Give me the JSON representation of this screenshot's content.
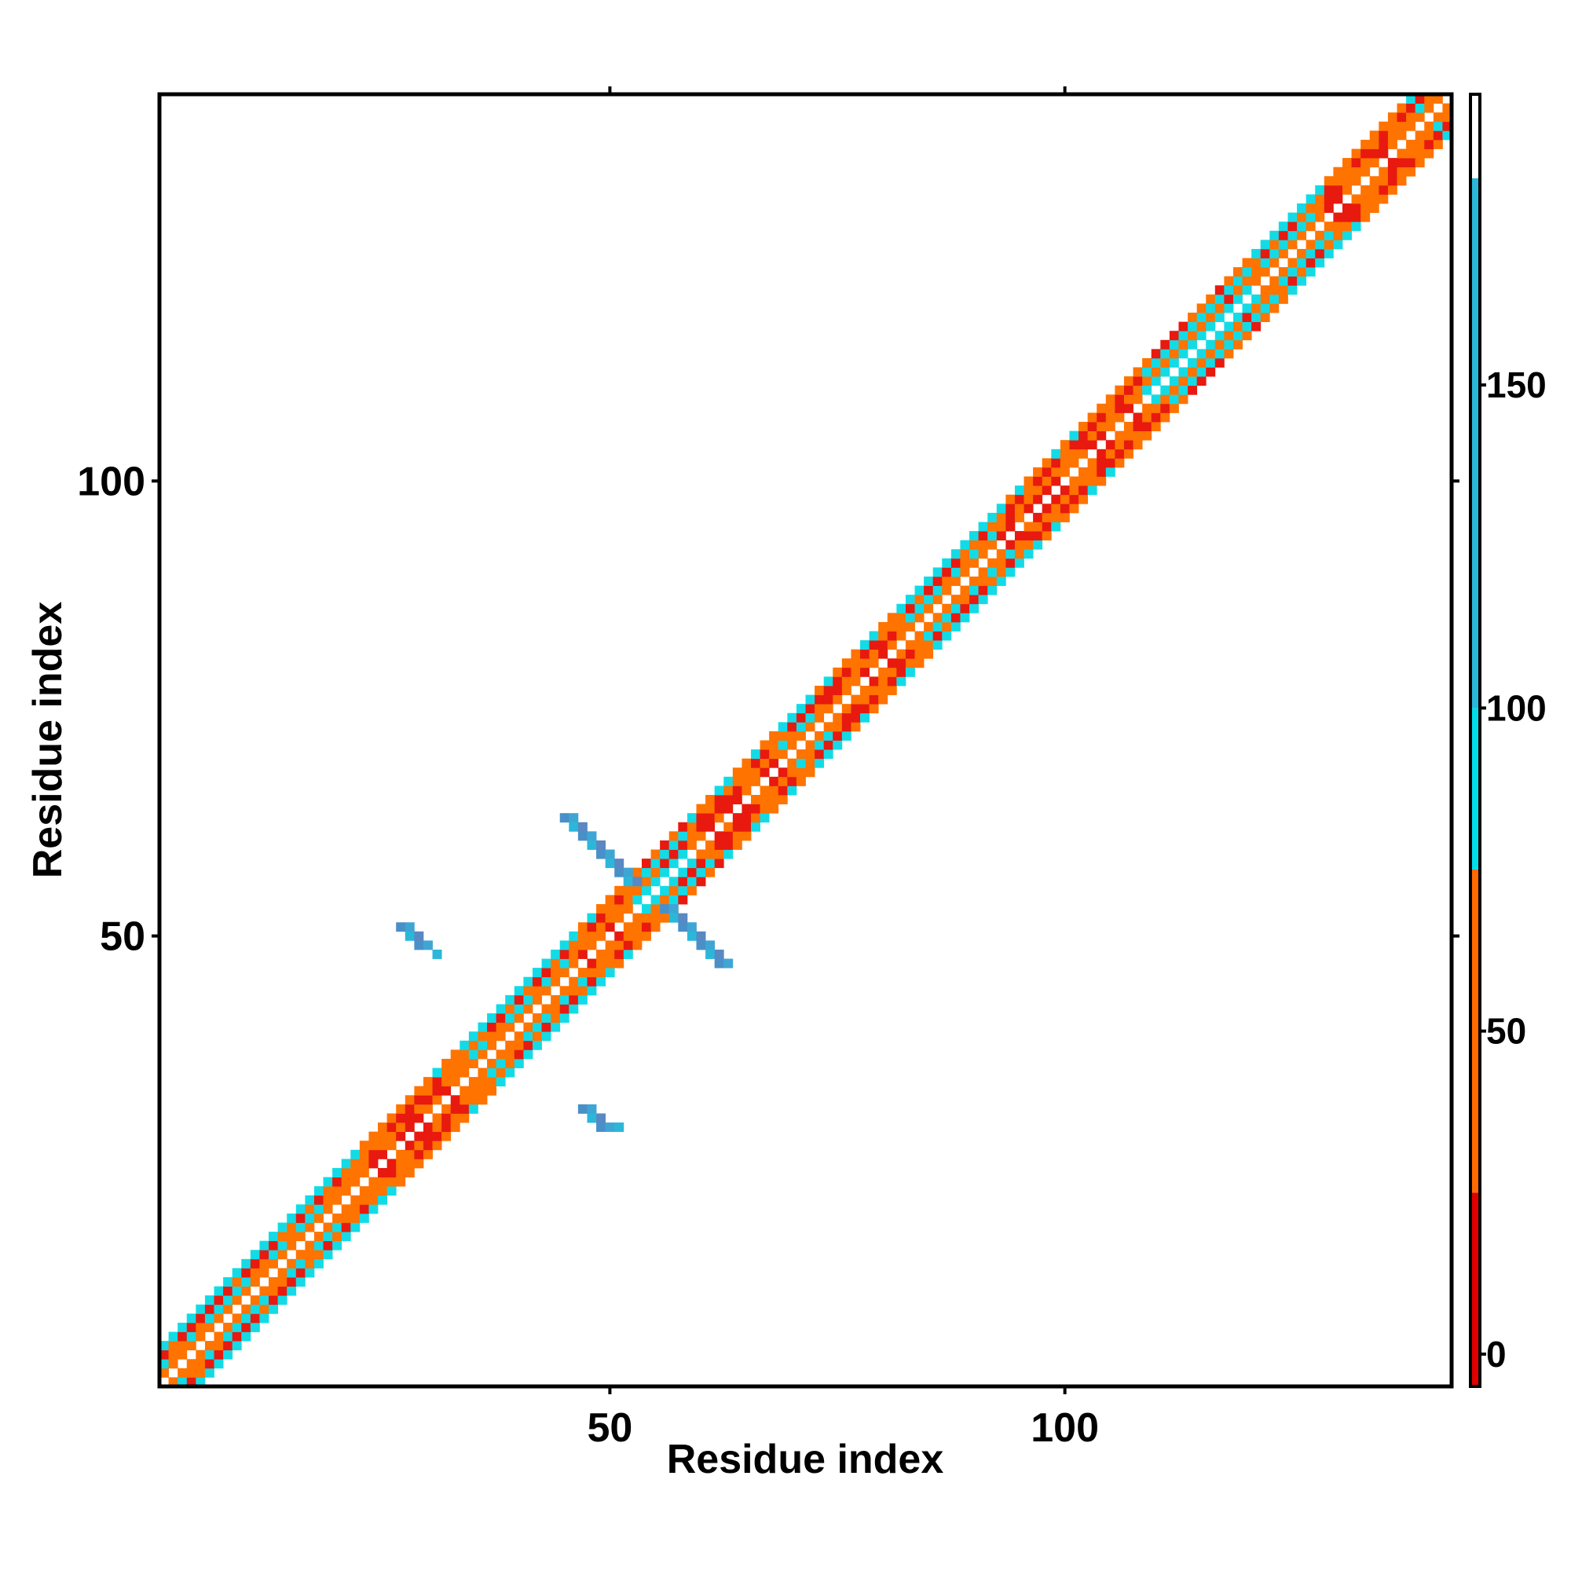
{
  "chart_data": {
    "type": "heatmap",
    "title": "",
    "xlabel": "Residue index",
    "ylabel": "Residue index",
    "xlim": [
      1,
      142
    ],
    "ylim": [
      1,
      142
    ],
    "x_ticks": [
      50,
      100
    ],
    "y_ticks": [
      50,
      100
    ],
    "x_tick_labels": [
      "50",
      "100"
    ],
    "y_tick_labels": [
      "50",
      "100"
    ],
    "grid": false,
    "legend": "right (vertical color bar)",
    "colorbar": {
      "ticks": [
        0,
        50,
        100,
        150
      ],
      "tick_labels": [
        "0",
        "50",
        "100",
        "150"
      ],
      "range": [
        -5,
        195
      ],
      "stops": [
        {
          "from": -5,
          "to": 25,
          "color": "#e00000"
        },
        {
          "from": 25,
          "to": 75,
          "color": "#ff6a00"
        },
        {
          "from": 75,
          "to": 100,
          "color": "#00dde8"
        },
        {
          "from": 100,
          "to": 182,
          "color": "#2bb7d9"
        },
        {
          "from": 182,
          "to": 195,
          "color": "#ffffff"
        }
      ]
    },
    "value_classes": {
      "near": {
        "range": [
          0,
          20
        ],
        "color": "#e8190f"
      },
      "mid": {
        "range": [
          30,
          60
        ],
        "color": "#ff7300"
      },
      "cyan": {
        "range": [
          85,
          100
        ],
        "color": "#13dbe6"
      },
      "far": {
        "range": [
          140,
          170
        ],
        "color": "#4a90c8"
      }
    },
    "diagonal_band": {
      "description": "Symmetric band of values around the main diagonal, residues 1-142, half-width 4",
      "from": 1,
      "to": 142,
      "half_width": 4,
      "segments": [
        {
          "from": 1,
          "to": 22,
          "pattern": "alternating orange/cyan"
        },
        {
          "from": 22,
          "to": 34,
          "pattern": "red/orange"
        },
        {
          "from": 34,
          "to": 46,
          "pattern": "orange/cyan"
        },
        {
          "from": 46,
          "to": 52,
          "pattern": "red/orange"
        },
        {
          "from": 52,
          "to": 58,
          "pattern": "cyan"
        },
        {
          "from": 58,
          "to": 68,
          "pattern": "red/orange"
        },
        {
          "from": 68,
          "to": 72,
          "pattern": "orange/cyan"
        },
        {
          "from": 72,
          "to": 82,
          "pattern": "red/orange"
        },
        {
          "from": 82,
          "to": 92,
          "pattern": "orange/cyan"
        },
        {
          "from": 92,
          "to": 108,
          "pattern": "red/orange"
        },
        {
          "from": 108,
          "to": 120,
          "pattern": "cyan"
        },
        {
          "from": 120,
          "to": 128,
          "pattern": "orange/cyan"
        },
        {
          "from": 128,
          "to": 137,
          "pattern": "red/orange"
        },
        {
          "from": 137,
          "to": 142,
          "pattern": "orange/cyan"
        }
      ]
    },
    "off_diagonal_patches": [
      {
        "label": "anti-diagonal arm upper-left",
        "cells": [
          [
            45,
            63
          ],
          [
            46,
            63
          ],
          [
            46,
            62
          ],
          [
            47,
            62
          ],
          [
            47,
            61
          ],
          [
            48,
            61
          ],
          [
            48,
            60
          ],
          [
            49,
            60
          ],
          [
            49,
            59
          ],
          [
            50,
            59
          ],
          [
            50,
            58
          ],
          [
            51,
            58
          ],
          [
            51,
            57
          ],
          [
            52,
            57
          ],
          [
            52,
            56
          ],
          [
            53,
            56
          ]
        ],
        "value": 150
      },
      {
        "label": "anti-diagonal arm lower-right",
        "cells": [
          [
            56,
            53
          ],
          [
            57,
            53
          ],
          [
            57,
            52
          ],
          [
            58,
            52
          ],
          [
            58,
            51
          ],
          [
            59,
            51
          ],
          [
            59,
            50
          ],
          [
            60,
            50
          ],
          [
            60,
            49
          ],
          [
            61,
            49
          ],
          [
            61,
            48
          ],
          [
            62,
            48
          ],
          [
            62,
            47
          ],
          [
            63,
            47
          ]
        ],
        "value": 150
      },
      {
        "label": "small patch left",
        "cells": [
          [
            27,
            51
          ],
          [
            28,
            51
          ],
          [
            28,
            50
          ],
          [
            29,
            50
          ],
          [
            29,
            49
          ],
          [
            30,
            49
          ],
          [
            31,
            48
          ]
        ],
        "value": 160
      },
      {
        "label": "small patch bottom",
        "cells": [
          [
            47,
            31
          ],
          [
            48,
            31
          ],
          [
            48,
            30
          ],
          [
            49,
            30
          ],
          [
            49,
            29
          ],
          [
            50,
            29
          ],
          [
            51,
            29
          ]
        ],
        "value": 160
      }
    ]
  }
}
